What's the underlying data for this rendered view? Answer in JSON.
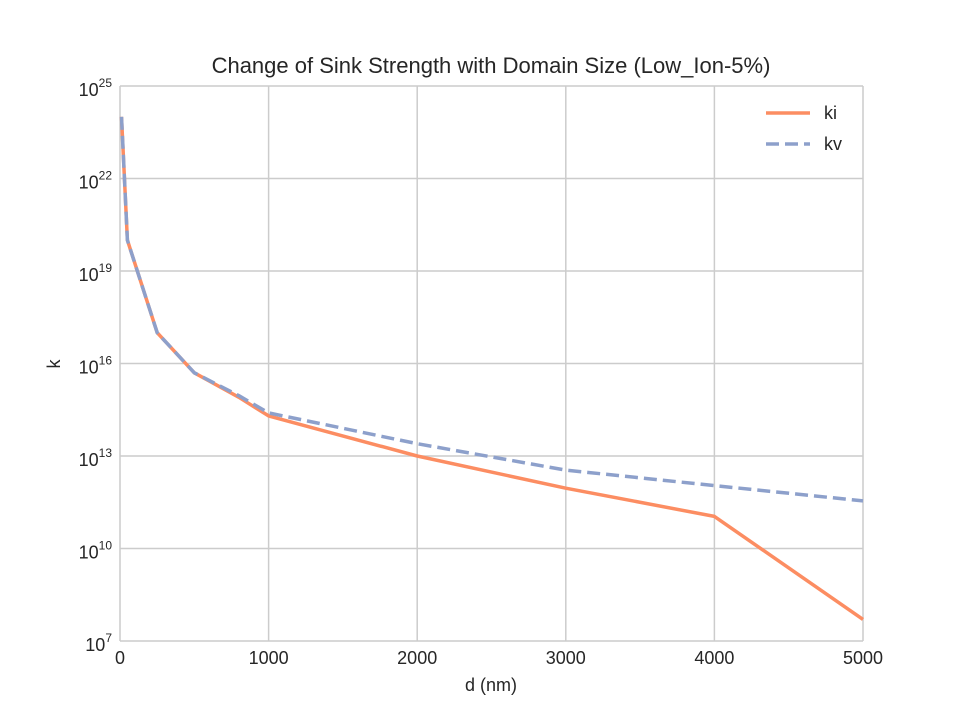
{
  "chart_data": {
    "type": "line",
    "title": "Change of Sink Strength with Domain Size (Low_Ion-5%)",
    "xlabel": "d (nm)",
    "ylabel": "k",
    "x": [
      10,
      50,
      250,
      500,
      800,
      1000,
      2000,
      3000,
      4000,
      5000
    ],
    "series": [
      {
        "name": "ki",
        "color": "#fc8d62",
        "style": "solid",
        "values": [
          1e+24,
          1e+20,
          1e+17,
          5000000000000000.0,
          800000000000000.0,
          200000000000000.0,
          10000000000000.0,
          900000000000.0,
          110000000000.0,
          50000000.0
        ]
      },
      {
        "name": "kv",
        "color": "#8da0cb",
        "style": "dashed",
        "values": [
          1e+24,
          1e+20,
          1e+17,
          5000000000000000.0,
          900000000000000.0,
          250000000000000.0,
          25000000000000.0,
          3500000000000.0,
          1100000000000.0,
          350000000000.0
        ]
      }
    ],
    "xlim": [
      0,
      5000
    ],
    "ylim": [
      10000000.0,
      1e+25
    ],
    "yscale": "log",
    "xticks": [
      "0",
      "1000",
      "2000",
      "3000",
      "4000",
      "5000"
    ],
    "yticks": [
      {
        "base": "10",
        "exp": "7"
      },
      {
        "base": "10",
        "exp": "10"
      },
      {
        "base": "10",
        "exp": "13"
      },
      {
        "base": "10",
        "exp": "16"
      },
      {
        "base": "10",
        "exp": "19"
      },
      {
        "base": "10",
        "exp": "22"
      },
      {
        "base": "10",
        "exp": "25"
      }
    ],
    "grid": true,
    "legend": "top-right",
    "colors": {
      "grid": "#cccccc",
      "text": "#262626",
      "background": "#ffffff"
    }
  }
}
